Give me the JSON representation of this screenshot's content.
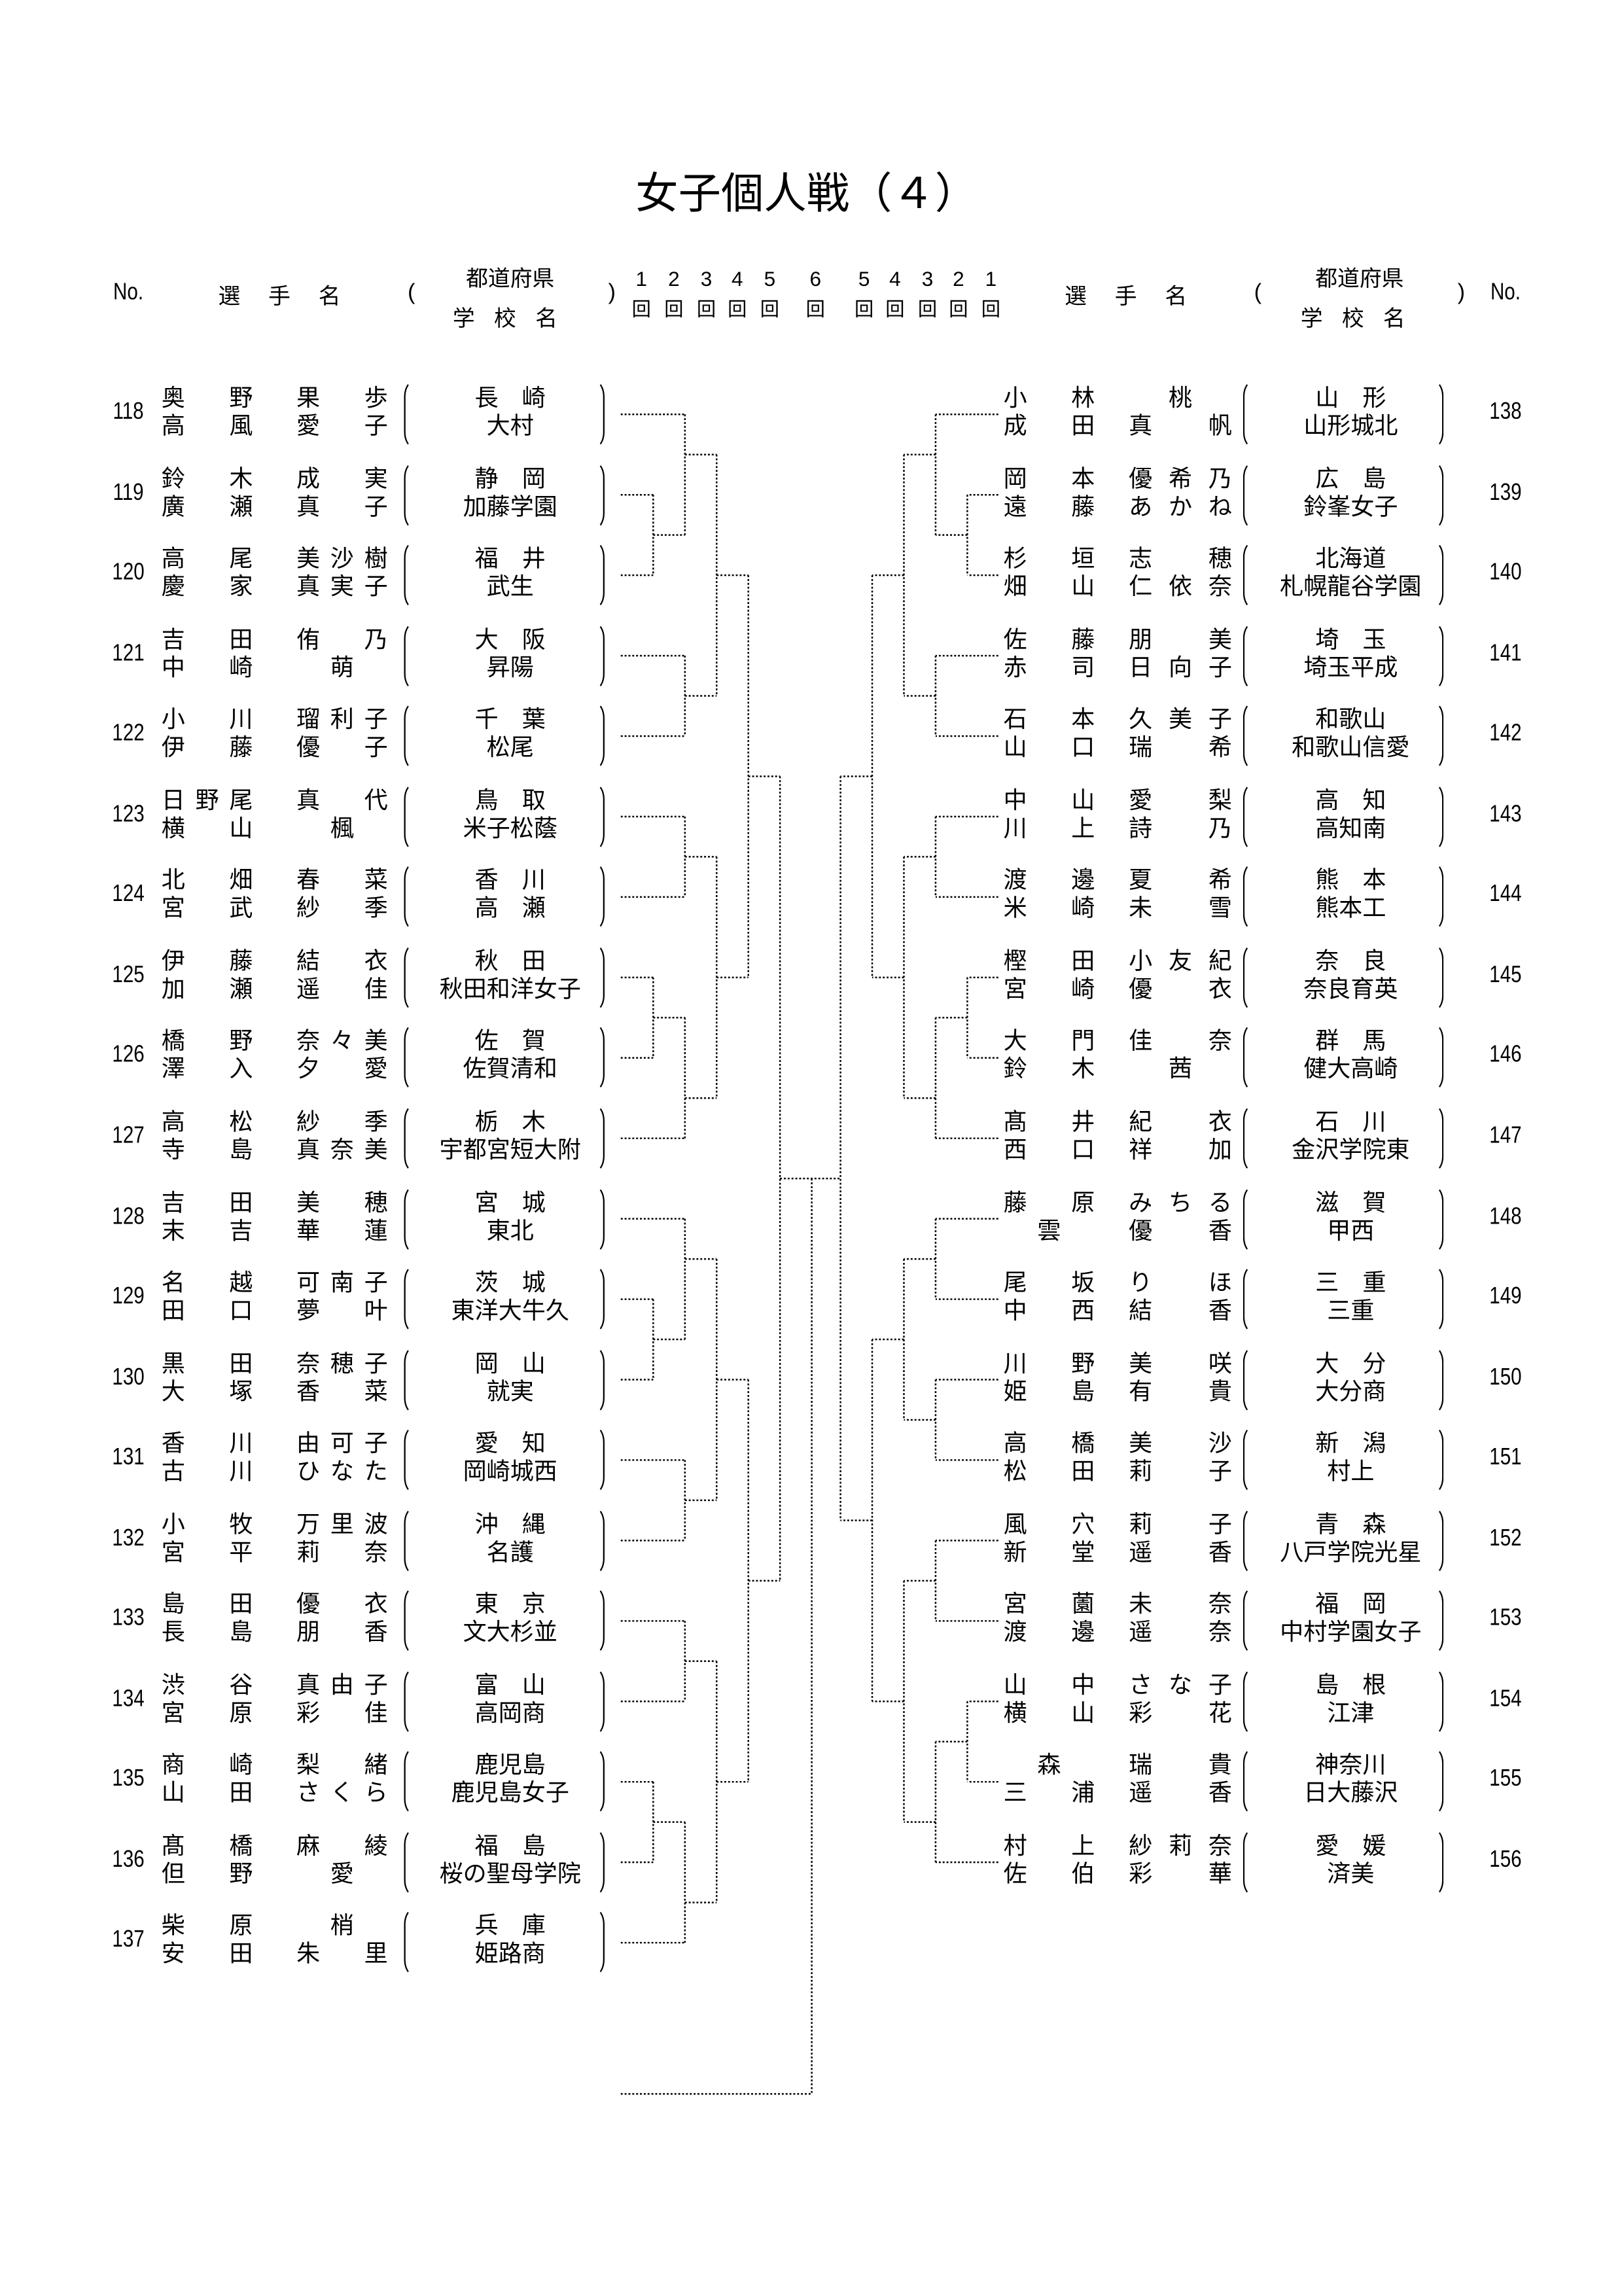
{
  "title": "女子個人戦（４）",
  "header": {
    "no": "No.",
    "player_name": "選手名",
    "open_paren": "(",
    "close_paren": ")",
    "prefecture": "都道府県",
    "school": "学校名",
    "rounds_left": [
      "1",
      "2",
      "3",
      "4",
      "5"
    ],
    "round_center": "6",
    "rounds_right": [
      "5",
      "4",
      "3",
      "2",
      "1"
    ],
    "round_suffix": "回"
  },
  "left_entries": [
    {
      "no": "118",
      "players": [
        [
          "奥野",
          "果歩"
        ],
        [
          "高風",
          "愛子"
        ]
      ],
      "pref": "長　崎",
      "school": "大村"
    },
    {
      "no": "119",
      "players": [
        [
          "鈴木",
          "成実"
        ],
        [
          "廣瀬",
          "真子"
        ]
      ],
      "pref": "静　岡",
      "school": "加藤学園"
    },
    {
      "no": "120",
      "players": [
        [
          "高尾",
          "美沙樹"
        ],
        [
          "慶家",
          "真実子"
        ]
      ],
      "pref": "福　井",
      "school": "武生"
    },
    {
      "no": "121",
      "players": [
        [
          "吉田",
          "侑乃"
        ],
        [
          "中崎",
          "萌"
        ]
      ],
      "pref": "大　阪",
      "school": "昇陽"
    },
    {
      "no": "122",
      "players": [
        [
          "小川",
          "瑠利子"
        ],
        [
          "伊藤",
          "優子"
        ]
      ],
      "pref": "千　葉",
      "school": "松尾"
    },
    {
      "no": "123",
      "players": [
        [
          "日野尾",
          "真代"
        ],
        [
          "横山",
          "楓"
        ]
      ],
      "pref": "鳥　取",
      "school": "米子松蔭"
    },
    {
      "no": "124",
      "players": [
        [
          "北畑",
          "春菜"
        ],
        [
          "宮武",
          "紗季"
        ]
      ],
      "pref": "香　川",
      "school": "高　瀬"
    },
    {
      "no": "125",
      "players": [
        [
          "伊藤",
          "結衣"
        ],
        [
          "加瀬",
          "遥佳"
        ]
      ],
      "pref": "秋　田",
      "school": "秋田和洋女子"
    },
    {
      "no": "126",
      "players": [
        [
          "橋野",
          "奈々美"
        ],
        [
          "澤入",
          "夕愛"
        ]
      ],
      "pref": "佐　賀",
      "school": "佐賀清和"
    },
    {
      "no": "127",
      "players": [
        [
          "高松",
          "紗季"
        ],
        [
          "寺島",
          "真奈美"
        ]
      ],
      "pref": "栃　木",
      "school": "宇都宮短大附"
    },
    {
      "no": "128",
      "players": [
        [
          "吉田",
          "美穂"
        ],
        [
          "末吉",
          "華蓮"
        ]
      ],
      "pref": "宮　城",
      "school": "東北"
    },
    {
      "no": "129",
      "players": [
        [
          "名越",
          "可南子"
        ],
        [
          "田口",
          "夢叶"
        ]
      ],
      "pref": "茨　城",
      "school": "東洋大牛久"
    },
    {
      "no": "130",
      "players": [
        [
          "黒田",
          "奈穂子"
        ],
        [
          "大塚",
          "香菜"
        ]
      ],
      "pref": "岡　山",
      "school": "就実"
    },
    {
      "no": "131",
      "players": [
        [
          "香川",
          "由可子"
        ],
        [
          "古川",
          "ひなた"
        ]
      ],
      "pref": "愛　知",
      "school": "岡崎城西"
    },
    {
      "no": "132",
      "players": [
        [
          "小牧",
          "万里波"
        ],
        [
          "宮平",
          "莉奈"
        ]
      ],
      "pref": "沖　縄",
      "school": "名護"
    },
    {
      "no": "133",
      "players": [
        [
          "島田",
          "優衣"
        ],
        [
          "長島",
          "朋香"
        ]
      ],
      "pref": "東　京",
      "school": "文大杉並"
    },
    {
      "no": "134",
      "players": [
        [
          "渋谷",
          "真由子"
        ],
        [
          "宮原",
          "彩佳"
        ]
      ],
      "pref": "富　山",
      "school": "高岡商"
    },
    {
      "no": "135",
      "players": [
        [
          "商崎",
          "梨緒"
        ],
        [
          "山田",
          "さくら"
        ]
      ],
      "pref": "鹿児島",
      "school": "鹿児島女子"
    },
    {
      "no": "136",
      "players": [
        [
          "髙橋",
          "麻綾"
        ],
        [
          "但野",
          "愛"
        ]
      ],
      "pref": "福　島",
      "school": "桜の聖母学院"
    },
    {
      "no": "137",
      "players": [
        [
          "柴原",
          "梢"
        ],
        [
          "安田",
          "朱里"
        ]
      ],
      "pref": "兵　庫",
      "school": "姫路商"
    }
  ],
  "right_entries": [
    {
      "no": "138",
      "players": [
        [
          "小林",
          "桃"
        ],
        [
          "成田",
          "真帆"
        ]
      ],
      "pref": "山　形",
      "school": "山形城北"
    },
    {
      "no": "139",
      "players": [
        [
          "岡本",
          "優希乃"
        ],
        [
          "遠藤",
          "あかね"
        ]
      ],
      "pref": "広　島",
      "school": "鈴峯女子"
    },
    {
      "no": "140",
      "players": [
        [
          "杉垣",
          "志穂"
        ],
        [
          "畑山",
          "仁依奈"
        ]
      ],
      "pref": "北海道",
      "school": "札幌龍谷学園"
    },
    {
      "no": "141",
      "players": [
        [
          "佐藤",
          "朋美"
        ],
        [
          "赤司",
          "日向子"
        ]
      ],
      "pref": "埼　玉",
      "school": "埼玉平成"
    },
    {
      "no": "142",
      "players": [
        [
          "石本",
          "久美子"
        ],
        [
          "山口",
          "瑞希"
        ]
      ],
      "pref": "和歌山",
      "school": "和歌山信愛"
    },
    {
      "no": "143",
      "players": [
        [
          "中山",
          "愛梨"
        ],
        [
          "川上",
          "詩乃"
        ]
      ],
      "pref": "高　知",
      "school": "高知南"
    },
    {
      "no": "144",
      "players": [
        [
          "渡邊",
          "夏希"
        ],
        [
          "米崎",
          "未雪"
        ]
      ],
      "pref": "熊　本",
      "school": "熊本工"
    },
    {
      "no": "145",
      "players": [
        [
          "樫田",
          "小友紀"
        ],
        [
          "宮崎",
          "優衣"
        ]
      ],
      "pref": "奈　良",
      "school": "奈良育英"
    },
    {
      "no": "146",
      "players": [
        [
          "大門",
          "佳奈"
        ],
        [
          "鈴木",
          "茜"
        ]
      ],
      "pref": "群　馬",
      "school": "健大高崎"
    },
    {
      "no": "147",
      "players": [
        [
          "髙井",
          "紀衣"
        ],
        [
          "西口",
          "祥加"
        ]
      ],
      "pref": "石　川",
      "school": "金沢学院東"
    },
    {
      "no": "148",
      "players": [
        [
          "藤原",
          "みちる"
        ],
        [
          "雲",
          "優香"
        ]
      ],
      "pref": "滋　賀",
      "school": "甲西"
    },
    {
      "no": "149",
      "players": [
        [
          "尾坂",
          "りほ"
        ],
        [
          "中西",
          "結香"
        ]
      ],
      "pref": "三　重",
      "school": "三重"
    },
    {
      "no": "150",
      "players": [
        [
          "川野",
          "美咲"
        ],
        [
          "姫島",
          "有貴"
        ]
      ],
      "pref": "大　分",
      "school": "大分商"
    },
    {
      "no": "151",
      "players": [
        [
          "高橋",
          "美沙"
        ],
        [
          "松田",
          "莉子"
        ]
      ],
      "pref": "新　潟",
      "school": "村上"
    },
    {
      "no": "152",
      "players": [
        [
          "風穴",
          "莉子"
        ],
        [
          "新堂",
          "遥香"
        ]
      ],
      "pref": "青　森",
      "school": "八戸学院光星"
    },
    {
      "no": "153",
      "players": [
        [
          "宮薗",
          "未奈"
        ],
        [
          "渡邊",
          "遥奈"
        ]
      ],
      "pref": "福　岡",
      "school": "中村学園女子"
    },
    {
      "no": "154",
      "players": [
        [
          "山中",
          "さな子"
        ],
        [
          "横山",
          "彩花"
        ]
      ],
      "pref": "島　根",
      "school": "江津"
    },
    {
      "no": "155",
      "players": [
        [
          "森",
          "瑞貴"
        ],
        [
          "三浦",
          "遥香"
        ]
      ],
      "pref": "神奈川",
      "school": "日大藤沢"
    },
    {
      "no": "156",
      "players": [
        [
          "村上",
          "紗莉奈"
        ],
        [
          "佐伯",
          "彩華"
        ]
      ],
      "pref": "愛　媛",
      "school": "済美"
    }
  ],
  "bracket": {
    "left": [
      [
        [
          [
            "118",
            [
              "119",
              "120"
            ]
          ],
          [
            "121",
            "122"
          ]
        ],
        [
          [
            "123",
            "124"
          ],
          [
            [
              "125",
              "126"
            ],
            "127"
          ]
        ]
      ],
      [
        [
          [
            "128",
            [
              "129",
              "130"
            ]
          ],
          [
            "131",
            "132"
          ]
        ],
        [
          [
            "133",
            "134"
          ],
          [
            [
              "135",
              "136"
            ],
            "137"
          ]
        ]
      ]
    ],
    "right": [
      [
        [
          [
            "138",
            [
              "139",
              "140"
            ]
          ],
          [
            "141",
            "142"
          ]
        ],
        [
          [
            "143",
            "144"
          ],
          [
            [
              "145",
              "146"
            ],
            "147"
          ]
        ]
      ],
      [
        [
          [
            "148",
            "149"
          ],
          [
            "150",
            "151"
          ]
        ],
        [
          [
            "152",
            "153"
          ],
          [
            [
              "154",
              "155"
            ],
            "156"
          ]
        ]
      ]
    ]
  }
}
